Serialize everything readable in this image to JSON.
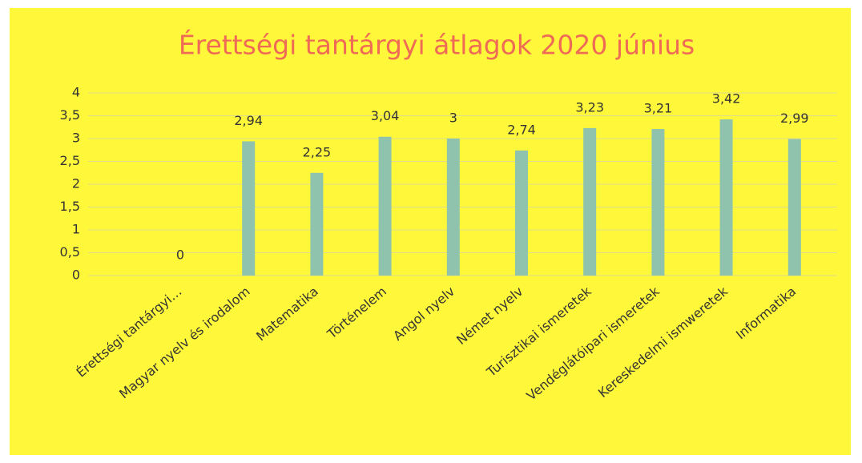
{
  "chart_data": {
    "type": "bar",
    "title": "Érettségi tantárgyi átlagok 2020 június",
    "categories": [
      "Érettségi tantárgyi…",
      "Magyar nyelv és irodalom",
      "Matematika",
      "Történelem",
      "Angol nyelv",
      "Német nyelv",
      "Turisztikai ismeretek",
      "Vendéglátóipari ismeretek",
      "Kereskedelmi ismweretek",
      "Informatika"
    ],
    "values": [
      0,
      2.94,
      2.25,
      3.04,
      3,
      2.74,
      3.23,
      3.21,
      3.42,
      2.99
    ],
    "value_labels": [
      "0",
      "2,94",
      "2,25",
      "3,04",
      "3",
      "2,74",
      "3,23",
      "3,21",
      "3,42",
      "2,99"
    ],
    "color": "#8fc3ae",
    "ylim": [
      0,
      4
    ],
    "yticks": [
      0,
      {
        "value": 0.5,
        "label": "0,5"
      },
      1,
      {
        "value": 1.5,
        "label": "1,5"
      },
      2,
      {
        "value": 2.5,
        "label": "2,5"
      },
      3,
      {
        "value": 3.5,
        "label": "3,5"
      },
      4
    ],
    "grid": true
  }
}
